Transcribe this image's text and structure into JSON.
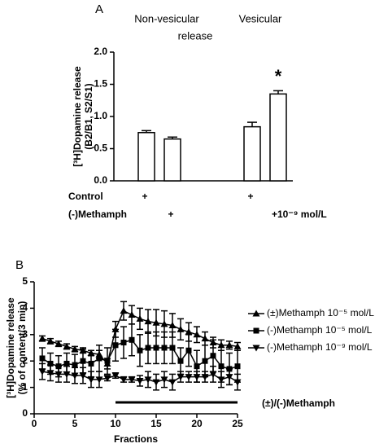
{
  "chart_data": [
    {
      "type": "bar",
      "panel": "A",
      "groups": [
        {
          "lines": [
            "Non-vesicular",
            "release"
          ]
        },
        {
          "lines": [
            "Vesicular"
          ]
        }
      ],
      "ylabel_lines": [
        "[³H]Dopamine release",
        "(B2/B1, S2/S1)"
      ],
      "categories": [
        null,
        null,
        null,
        null
      ],
      "values": [
        0.75,
        0.65,
        0.84,
        1.35
      ],
      "errors": [
        0.03,
        0.03,
        0.07,
        0.05
      ],
      "color": "#ffffff",
      "annotations": [
        {
          "text": "*"
        }
      ],
      "conditions": [
        {
          "label": "Control",
          "marks": [
            "+",
            null,
            "+",
            null
          ]
        },
        {
          "label": "(-)Methamph",
          "marks": [
            null,
            "+",
            null,
            "+10⁻⁹ mol/L"
          ]
        }
      ],
      "ylim": [
        0,
        2
      ],
      "yticks": [
        {
          "value": 0,
          "label": "0.0"
        },
        0.5,
        {
          "value": 1,
          "label": "1.0"
        },
        1.5,
        {
          "value": 2,
          "label": "2.0"
        }
      ]
    },
    {
      "type": "line",
      "panel": "B",
      "xlabel": "Fractions",
      "ylabel_lines": [
        "[³H]Dopamine release",
        "(% of content/3 min)"
      ],
      "x": [
        1,
        2,
        3,
        4,
        5,
        6,
        7,
        8,
        9,
        10,
        11,
        12,
        13,
        14,
        15,
        16,
        17,
        18,
        19,
        20,
        21,
        22,
        23,
        24,
        25
      ],
      "series": [
        {
          "name": "(±)Methamph 10⁻⁵ mol/L",
          "color": "#000000",
          "marker": "triangle-up",
          "values": [
            2.85,
            2.75,
            2.65,
            2.55,
            2.45,
            2.4,
            2.3,
            2.25,
            1.9,
            3.2,
            3.9,
            3.75,
            3.6,
            3.5,
            3.45,
            3.4,
            3.35,
            3.2,
            3.1,
            3.0,
            2.85,
            2.7,
            2.6,
            2.6,
            2.55
          ],
          "errors": [
            0.1,
            0.1,
            0.1,
            0.1,
            0.1,
            0.1,
            0.1,
            0.15,
            0.2,
            0.3,
            0.35,
            0.35,
            0.4,
            0.45,
            0.5,
            0.5,
            0.45,
            0.4,
            0.35,
            0.3,
            0.25,
            0.2,
            0.2,
            0.15,
            0.15
          ]
        },
        {
          "name": "(-)Methamph 10⁻⁵ mol/L",
          "color": "#000000",
          "marker": "square",
          "values": [
            2.1,
            1.9,
            1.8,
            1.9,
            1.85,
            2.0,
            1.9,
            2.1,
            2.0,
            2.6,
            2.7,
            2.8,
            2.4,
            2.5,
            2.5,
            2.5,
            2.5,
            2.0,
            2.4,
            1.8,
            2.0,
            2.2,
            1.8,
            1.7,
            1.8
          ],
          "errors": [
            0.4,
            0.4,
            0.4,
            0.4,
            0.4,
            0.45,
            0.5,
            0.5,
            0.5,
            0.6,
            0.6,
            0.6,
            0.6,
            0.6,
            0.6,
            0.6,
            0.6,
            0.5,
            0.6,
            0.6,
            0.6,
            0.6,
            0.6,
            0.6,
            0.6
          ]
        },
        {
          "name": "(-)Methamph 10⁻⁹ mol/L",
          "color": "#000000",
          "marker": "triangle-down",
          "values": [
            1.6,
            1.55,
            1.5,
            1.5,
            1.45,
            1.45,
            1.3,
            1.3,
            1.35,
            1.45,
            1.3,
            1.3,
            1.25,
            1.3,
            1.2,
            1.3,
            1.2,
            1.4,
            1.4,
            1.4,
            1.4,
            1.5,
            1.3,
            1.4,
            1.2
          ],
          "errors": [
            0.3,
            0.3,
            0.3,
            0.3,
            0.3,
            0.3,
            0.3,
            0.3,
            0.1,
            0.1,
            0.1,
            0.1,
            0.2,
            0.3,
            0.3,
            0.3,
            0.3,
            0.2,
            0.2,
            0.2,
            0.2,
            0.3,
            0.3,
            0.3,
            0.3
          ]
        }
      ],
      "treatment": {
        "label": "(±)/(-)Methamph",
        "x": [
          10,
          25
        ]
      },
      "xlim": [
        0,
        25
      ],
      "xticks": [
        0,
        5,
        10,
        15,
        20,
        25
      ],
      "ylim": [
        0,
        5
      ],
      "yticks": [
        0,
        1,
        2,
        3,
        4,
        5
      ]
    }
  ]
}
